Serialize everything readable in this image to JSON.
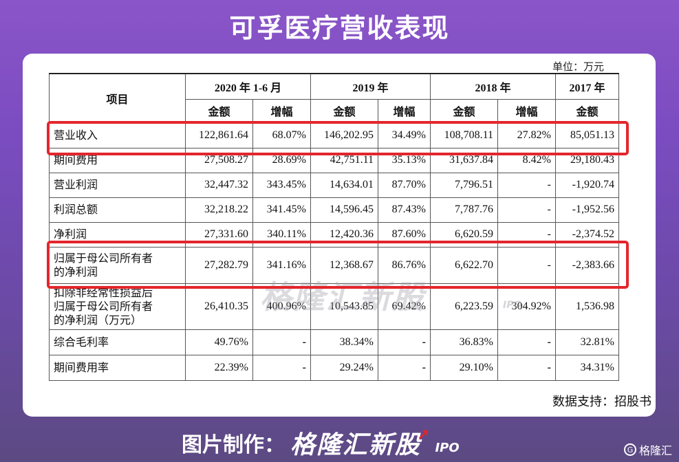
{
  "title": "可孚医疗营收表现",
  "unit_label": "单位：万元",
  "table": {
    "item_header": "项目",
    "periods": [
      "2020 年 1-6 月",
      "2019 年",
      "2018 年",
      "2017 年"
    ],
    "sub_headers": [
      "金额",
      "增幅",
      "金额",
      "增幅",
      "金额",
      "增幅",
      "金额"
    ],
    "rows": [
      {
        "label": "营业收入",
        "cells": [
          "122,861.64",
          "68.07%",
          "146,202.95",
          "34.49%",
          "108,708.11",
          "27.82%",
          "85,051.13"
        ]
      },
      {
        "label": "期间费用",
        "cells": [
          "27,508.27",
          "28.69%",
          "42,751.11",
          "35.13%",
          "31,637.84",
          "8.42%",
          "29,180.43"
        ]
      },
      {
        "label": "营业利润",
        "cells": [
          "32,447.32",
          "343.45%",
          "14,634.01",
          "87.70%",
          "7,796.51",
          "-",
          "-1,920.74"
        ]
      },
      {
        "label": "利润总额",
        "cells": [
          "32,218.22",
          "341.45%",
          "14,596.45",
          "87.43%",
          "7,787.76",
          "-",
          "-1,952.56"
        ]
      },
      {
        "label": "净利润",
        "cells": [
          "27,331.60",
          "340.11%",
          "12,420.36",
          "87.60%",
          "6,620.59",
          "-",
          "-2,374.52"
        ]
      },
      {
        "label": "归属于母公司所有者\n的净利润",
        "cells": [
          "27,282.79",
          "341.16%",
          "12,368.67",
          "86.76%",
          "6,622.70",
          "-",
          "-2,383.66"
        ]
      },
      {
        "label": "扣除非经常性损益后\n归属于母公司所有者\n的净利润（万元）",
        "cells": [
          "26,410.35",
          "400.96%",
          "10,543.85",
          "69.42%",
          "6,223.59",
          "304.92%",
          "1,536.98"
        ]
      },
      {
        "label": "综合毛利率",
        "cells": [
          "49.76%",
          "-",
          "38.34%",
          "-",
          "36.83%",
          "-",
          "32.81%"
        ]
      },
      {
        "label": "期间费用率",
        "cells": [
          "22.39%",
          "-",
          "29.24%",
          "-",
          "29.10%",
          "-",
          "34.31%"
        ]
      }
    ]
  },
  "watermark": {
    "brand": "格隆汇新股",
    "tag": "IPO"
  },
  "source": "数据支持：招股书",
  "footer": {
    "label": "图片制作：",
    "brand": "格隆汇新股",
    "tag": "IPO",
    "arrow": "↗"
  },
  "corner_logo": {
    "icon_text": "G",
    "text": "格隆汇"
  },
  "colors": {
    "background": "#7a4cc0",
    "highlight": "#e3262c"
  }
}
